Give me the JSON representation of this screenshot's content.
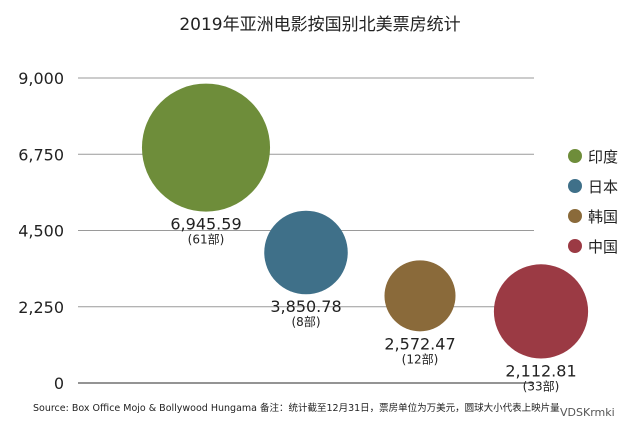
{
  "chart_data": {
    "type": "scatter",
    "title": "2019年亚洲电影按国别北美票房统计",
    "yticks": [
      "9,000",
      "6,750",
      "4,500",
      "2,250",
      "0"
    ],
    "ylim": [
      0,
      9000
    ],
    "grid": true,
    "legend_position": "right",
    "series": [
      {
        "name": "印度",
        "value": 6945.59,
        "value_label": "6,945.59",
        "count_label": "(61部)",
        "films": 61,
        "color": "#6e8d3a"
      },
      {
        "name": "日本",
        "value": 3850.78,
        "value_label": "3,850.78",
        "count_label": "(8部)",
        "films": 8,
        "color": "#3f7089"
      },
      {
        "name": "韩国",
        "value": 2572.47,
        "value_label": "2,572.47",
        "count_label": "(12部)",
        "films": 12,
        "color": "#8a6a3a"
      },
      {
        "name": "中国",
        "value": 2112.81,
        "value_label": "2,112.81",
        "count_label": "(33部)",
        "films": 33,
        "color": "#9b3a44"
      }
    ],
    "source": "Source: Box Office Mojo & Bollywood Hungama  备注：统计截至12月31日，票房单位为万美元，圆球大小代表上映片量"
  },
  "watermark": "VDSKrmki"
}
